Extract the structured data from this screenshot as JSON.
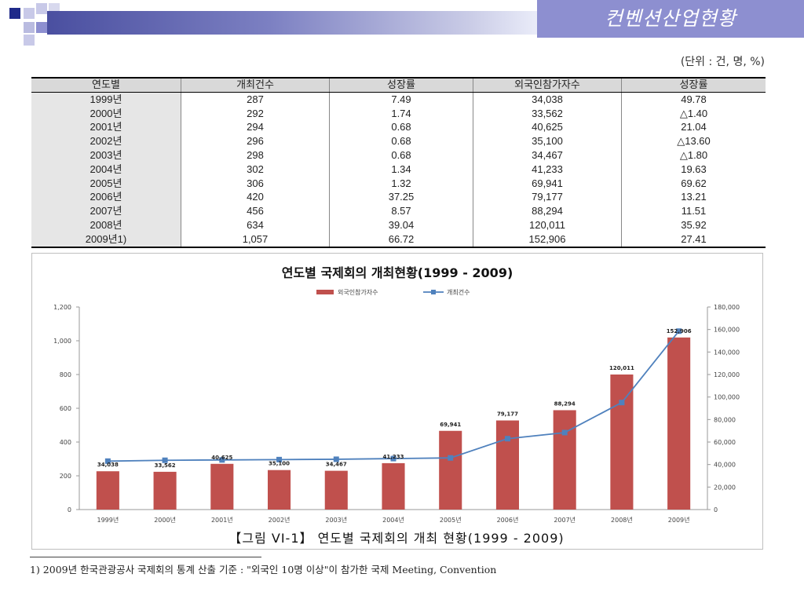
{
  "slide": {
    "title": "컨벤션산업현황",
    "unit_note": "(단위 : 건, 명, %)",
    "caption": "【그림 VI-1】 연도별 국제회의 개최 현황(1999 - 2009)",
    "footnote": "1) 2009년 한국관광공사 국제회의 통계 산출 기준 : \"외국인 10명 이상\"이 참가한 국제 Meeting, Convention"
  },
  "table": {
    "headers": [
      "연도별",
      "개최건수",
      "성장률",
      "외국인참가자수",
      "성장률"
    ],
    "rows": [
      [
        "1999년",
        "287",
        "7.49",
        "34,038",
        "49.78"
      ],
      [
        "2000년",
        "292",
        "1.74",
        "33,562",
        "△1.40"
      ],
      [
        "2001년",
        "294",
        "0.68",
        "40,625",
        "21.04"
      ],
      [
        "2002년",
        "296",
        "0.68",
        "35,100",
        "△13.60"
      ],
      [
        "2003년",
        "298",
        "0.68",
        "34,467",
        "△1.80"
      ],
      [
        "2004년",
        "302",
        "1.34",
        "41,233",
        "19.63"
      ],
      [
        "2005년",
        "306",
        "1.32",
        "69,941",
        "69.62"
      ],
      [
        "2006년",
        "420",
        "37.25",
        "79,177",
        "13.21"
      ],
      [
        "2007년",
        "456",
        "8.57",
        "88,294",
        "11.51"
      ],
      [
        "2008년",
        "634",
        "39.04",
        "120,011",
        "35.92"
      ],
      [
        "2009년1)",
        "1,057",
        "66.72",
        "152,906",
        "27.41"
      ]
    ]
  },
  "colors": {
    "bar": "#c0504d",
    "line": "#4f81bd",
    "header_bg": "#8d8fd0"
  },
  "chart_data": {
    "type": "bar",
    "title": "연도별 국제회의 개최현황(1999 - 2009)",
    "categories": [
      "1999년",
      "2000년",
      "2001년",
      "2002년",
      "2003년",
      "2004년",
      "2005년",
      "2006년",
      "2007년",
      "2008년",
      "2009년"
    ],
    "series": [
      {
        "name": "외국인참가자수",
        "type": "bar",
        "axis": "right",
        "values": [
          34038,
          33562,
          40625,
          35100,
          34467,
          41233,
          69941,
          79177,
          88294,
          120011,
          152906
        ],
        "labels": [
          "34,038",
          "33,562",
          "40,625",
          "35,100",
          "34,467",
          "41,233",
          "69,941",
          "79,177",
          "88,294",
          "120,011",
          "152,906"
        ]
      },
      {
        "name": "개최건수",
        "type": "line",
        "axis": "left",
        "values": [
          287,
          292,
          294,
          296,
          298,
          302,
          306,
          420,
          456,
          634,
          1057
        ]
      }
    ],
    "left_axis": {
      "ylim": [
        0,
        1200
      ],
      "ticks": [
        "0",
        "200",
        "400",
        "600",
        "800",
        "1,000",
        "1,200"
      ]
    },
    "right_axis": {
      "ylim": [
        0,
        180000
      ],
      "ticks": [
        "0",
        "20,000",
        "40,000",
        "60,000",
        "80,000",
        "100,000",
        "120,000",
        "140,000",
        "160,000",
        "180,000"
      ]
    },
    "legend_position": "top-center"
  }
}
